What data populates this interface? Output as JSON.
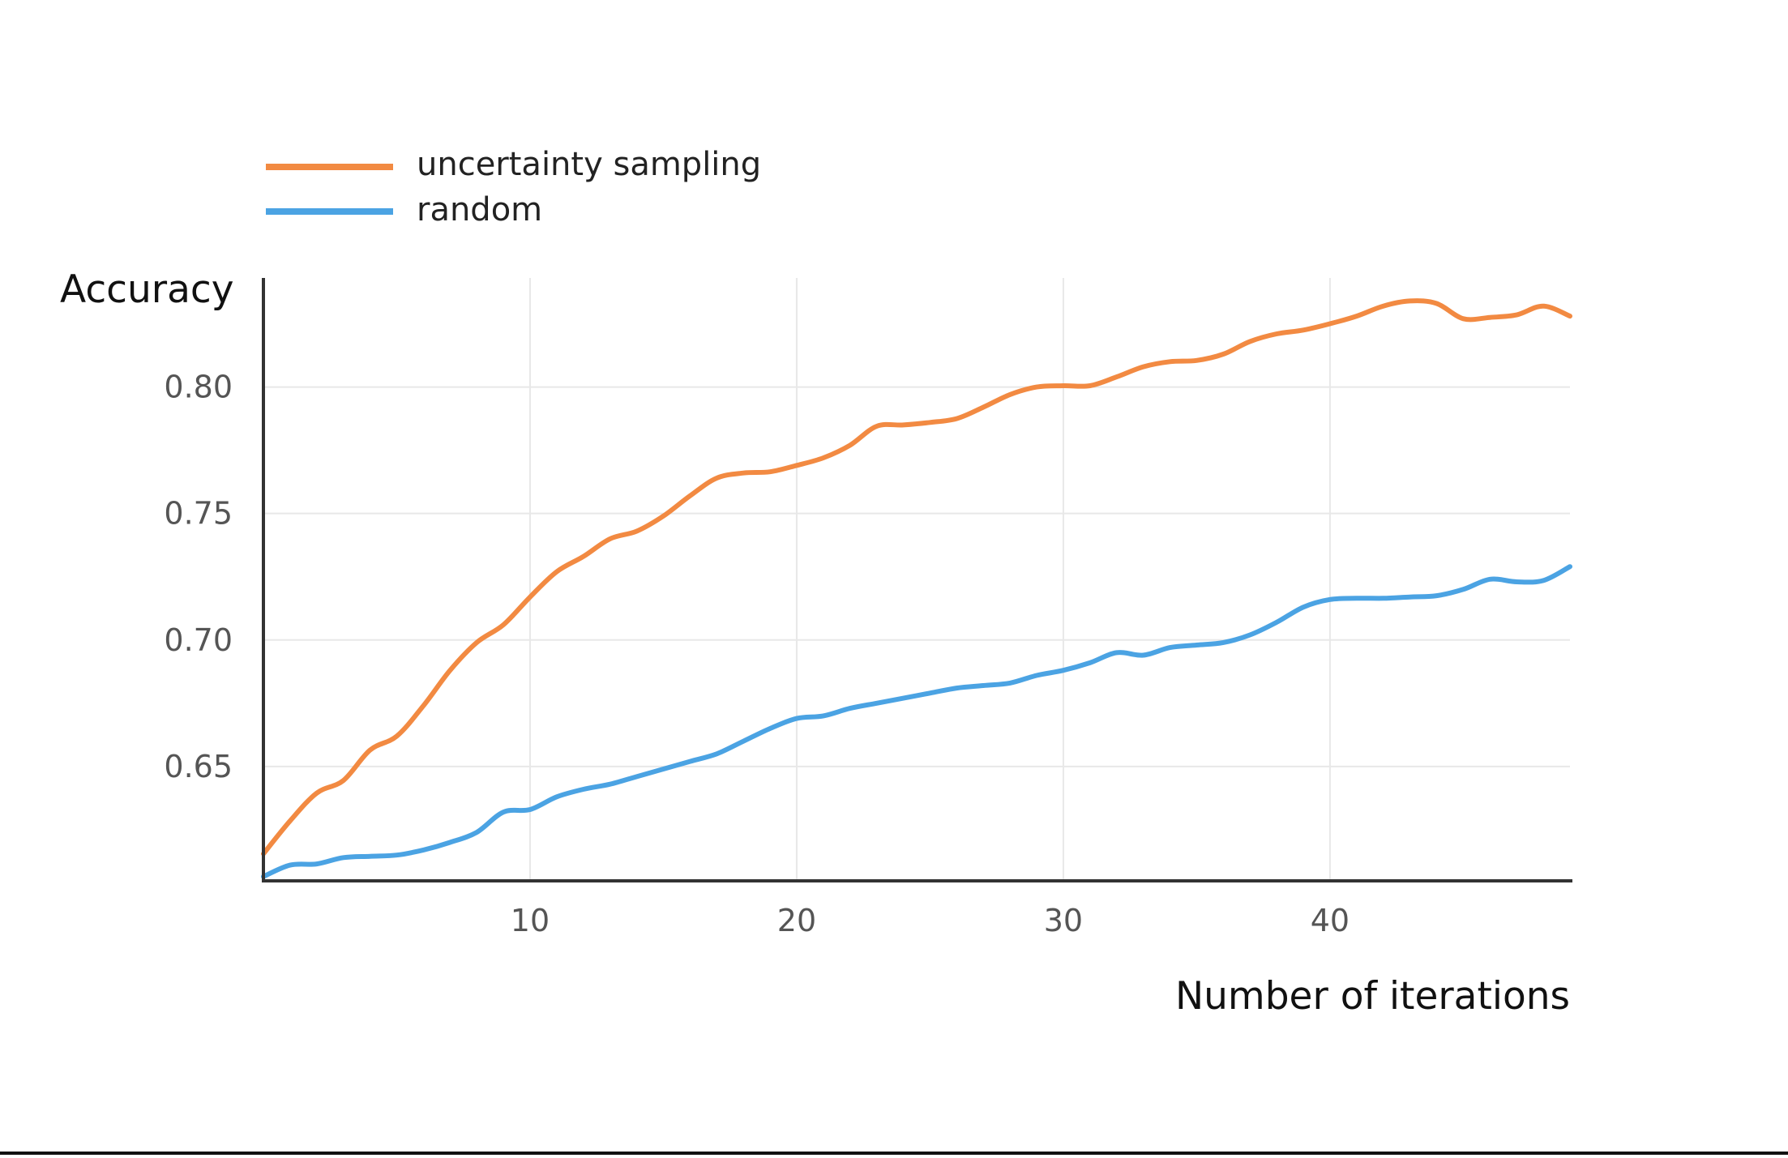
{
  "chart_data": {
    "type": "line",
    "title": "",
    "xlabel": "Number of iterations",
    "ylabel": "Accuracy",
    "xlim": [
      0,
      49
    ],
    "ylim": [
      0.6048,
      0.8431
    ],
    "xticks": [
      10,
      20,
      30,
      40
    ],
    "xtick_labels": [
      "10",
      "20",
      "30",
      "40"
    ],
    "yticks": [
      0.65,
      0.7,
      0.75,
      0.8
    ],
    "ytick_labels": [
      "0.65",
      "0.70",
      "0.75",
      "0.80"
    ],
    "grid": true,
    "legend_position": "top-left",
    "x": [
      0,
      1,
      2,
      3,
      4,
      5,
      6,
      7,
      8,
      9,
      10,
      11,
      12,
      13,
      14,
      15,
      16,
      17,
      18,
      19,
      20,
      21,
      22,
      23,
      24,
      25,
      26,
      27,
      28,
      29,
      30,
      31,
      32,
      33,
      34,
      35,
      36,
      37,
      38,
      39,
      40,
      41,
      42,
      43,
      44,
      45,
      46,
      47,
      48,
      49
    ],
    "series": [
      {
        "name": "uncertainty sampling",
        "color": "#f28a42",
        "values": [
          0.6155,
          0.6285,
          0.6395,
          0.6445,
          0.6565,
          0.662,
          0.674,
          0.688,
          0.699,
          0.706,
          0.717,
          0.727,
          0.733,
          0.74,
          0.743,
          0.749,
          0.757,
          0.764,
          0.766,
          0.7665,
          0.769,
          0.772,
          0.777,
          0.7845,
          0.785,
          0.786,
          0.7875,
          0.792,
          0.797,
          0.8,
          0.8005,
          0.8005,
          0.804,
          0.808,
          0.81,
          0.8105,
          0.813,
          0.818,
          0.821,
          0.8225,
          0.825,
          0.828,
          0.832,
          0.834,
          0.833,
          0.827,
          0.8275,
          0.8285,
          0.832,
          0.828
        ]
      },
      {
        "name": "random",
        "color": "#4ba3e3",
        "values": [
          0.6065,
          0.611,
          0.6115,
          0.614,
          0.6145,
          0.615,
          0.617,
          0.62,
          0.624,
          0.632,
          0.633,
          0.638,
          0.641,
          0.643,
          0.646,
          0.649,
          0.652,
          0.655,
          0.66,
          0.665,
          0.669,
          0.67,
          0.673,
          0.675,
          0.677,
          0.679,
          0.681,
          0.682,
          0.683,
          0.686,
          0.688,
          0.691,
          0.695,
          0.694,
          0.697,
          0.698,
          0.699,
          0.702,
          0.707,
          0.713,
          0.716,
          0.7165,
          0.7165,
          0.717,
          0.7175,
          0.72,
          0.724,
          0.723,
          0.7235,
          0.729
        ]
      }
    ]
  }
}
